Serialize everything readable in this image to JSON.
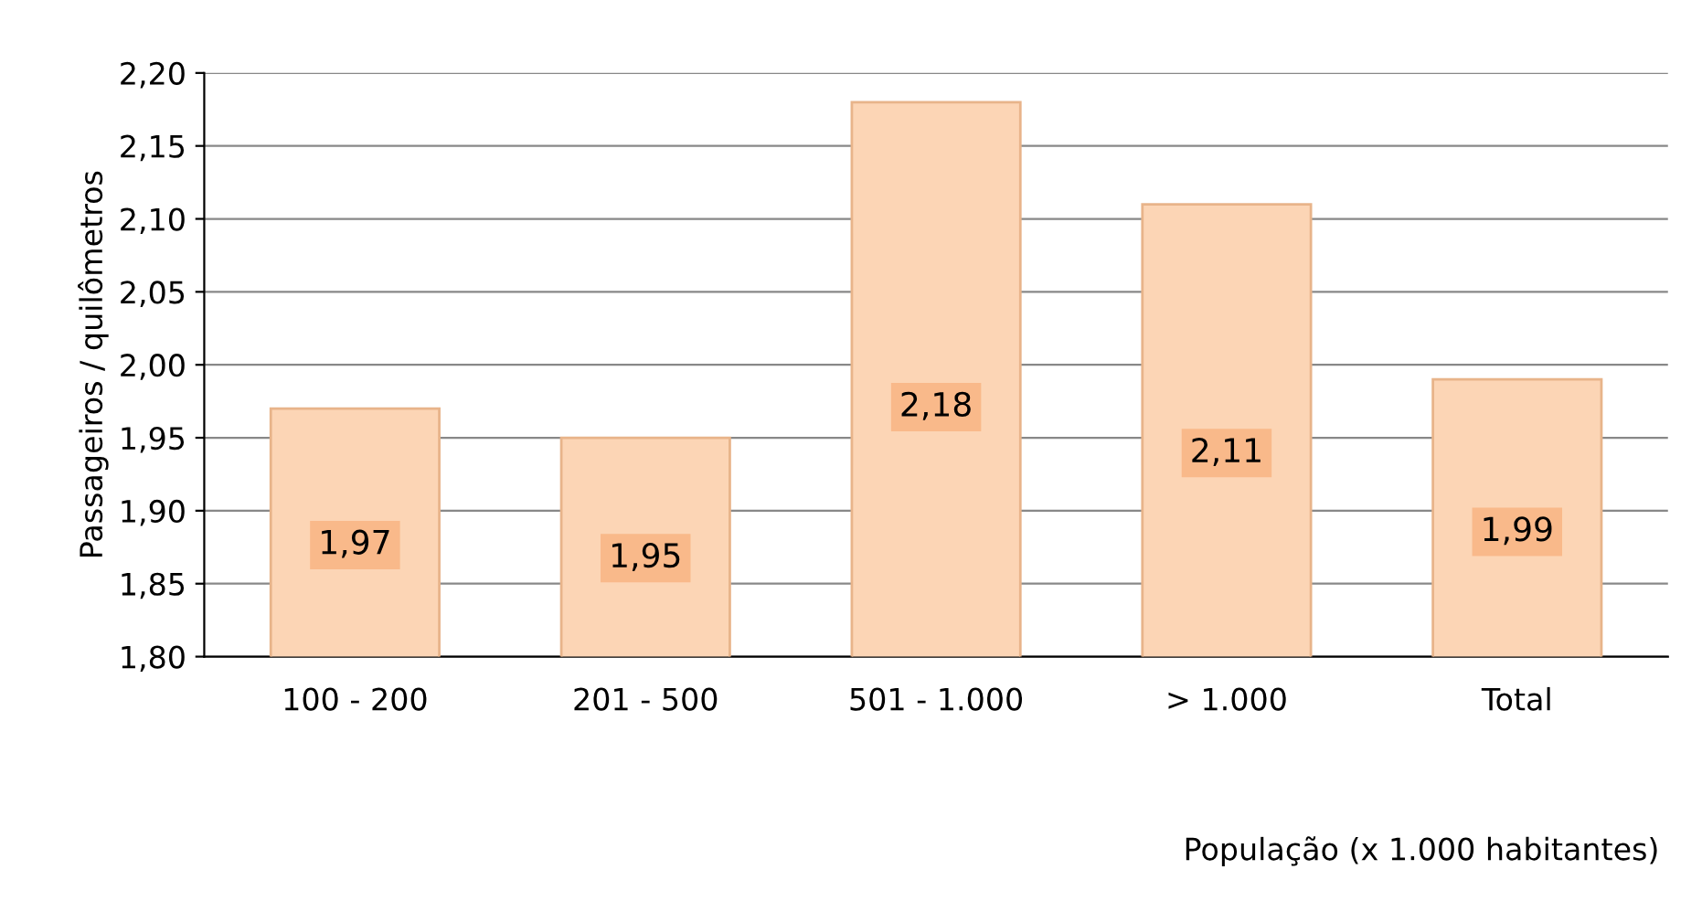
{
  "chart_data": {
    "type": "bar",
    "categories": [
      "100 - 200",
      "201 - 500",
      "501 - 1.000",
      "> 1.000",
      "Total"
    ],
    "values": [
      1.97,
      1.95,
      2.18,
      2.11,
      1.99
    ],
    "value_labels": [
      "1,97",
      "1,95",
      "2,18",
      "2,11",
      "1,99"
    ],
    "color": "#fcd5b5",
    "ylabel": "Passageiros / quilômetros",
    "xlabel": "População (x 1.000 habitantes)",
    "ylim": [
      1.8,
      2.2
    ],
    "yticks": [
      {
        "value": 1.8,
        "label": "1,80"
      },
      {
        "value": 1.85,
        "label": "1,85"
      },
      {
        "value": 1.9,
        "label": "1,90"
      },
      {
        "value": 1.95,
        "label": "1,95"
      },
      {
        "value": 2.0,
        "label": "2,00"
      },
      {
        "value": 2.05,
        "label": "2,05"
      },
      {
        "value": 2.1,
        "label": "2,10"
      },
      {
        "value": 2.15,
        "label": "2,15"
      },
      {
        "value": 2.2,
        "label": "2,20"
      }
    ],
    "grid": "y"
  }
}
